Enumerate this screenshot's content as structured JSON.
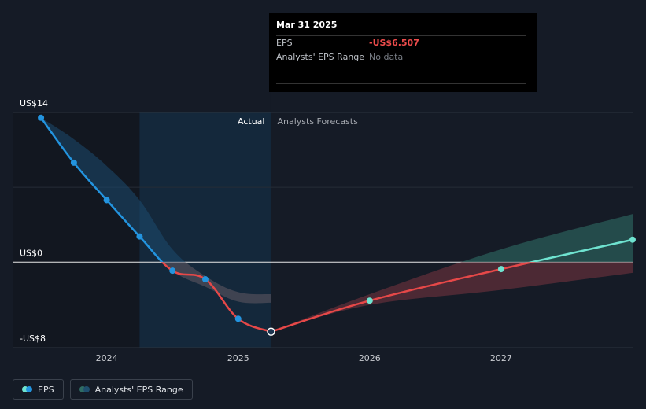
{
  "tooltip": {
    "date": "Mar 31 2025",
    "eps_label": "EPS",
    "eps_value": "-US$6.507",
    "range_label": "Analysts' EPS Range",
    "range_value": "No data"
  },
  "region_labels": {
    "actual": "Actual",
    "forecast": "Analysts Forecasts"
  },
  "legend": {
    "eps": "EPS",
    "range": "Analysts' EPS Range"
  },
  "colors": {
    "background": "#151b26",
    "actual_line": "#2394df",
    "negative_line": "#e64848",
    "positive_line": "#6fe3d0",
    "past_band": "#5c5560",
    "forecast_band_negative": "#7a3440",
    "forecast_band_positive": "#2f6c64",
    "highlight_region": "#142a40"
  },
  "chart_data": {
    "type": "line",
    "y_tick_labels": [
      "US$14",
      "US$0",
      "-US$8"
    ],
    "y_ticks": [
      14,
      0,
      -8
    ],
    "ylim": [
      -8,
      14
    ],
    "x_tick_labels": [
      "2024",
      "2025",
      "2026",
      "2027"
    ],
    "x_ticks": [
      2024,
      2025,
      2026,
      2027
    ],
    "xlim": [
      2023.29,
      2028.0
    ],
    "actual_boundary": 2025.25,
    "shaded_start": 2024.25,
    "series": [
      {
        "name": "EPS",
        "points": [
          {
            "x": 2023.5,
            "y": 13.5
          },
          {
            "x": 2023.75,
            "y": 9.3
          },
          {
            "x": 2024.0,
            "y": 5.8
          },
          {
            "x": 2024.25,
            "y": 2.4
          },
          {
            "x": 2024.5,
            "y": -0.8
          },
          {
            "x": 2024.75,
            "y": -1.6
          },
          {
            "x": 2025.0,
            "y": -5.3
          },
          {
            "x": 2025.25,
            "y": -6.507
          },
          {
            "x": 2026.0,
            "y": -3.6
          },
          {
            "x": 2027.0,
            "y": -0.65
          },
          {
            "x": 2028.0,
            "y": 2.1
          }
        ]
      }
    ],
    "range": {
      "past_upper": [
        {
          "x": 2023.5,
          "y": 13.5
        },
        {
          "x": 2023.75,
          "y": 11.5
        },
        {
          "x": 2024.0,
          "y": 9.0
        },
        {
          "x": 2024.25,
          "y": 5.8
        },
        {
          "x": 2024.5,
          "y": 1.2
        },
        {
          "x": 2024.75,
          "y": -1.3
        },
        {
          "x": 2025.0,
          "y": -2.8
        },
        {
          "x": 2025.25,
          "y": -3.0
        }
      ],
      "past_lower": [
        {
          "x": 2023.5,
          "y": 13.5
        },
        {
          "x": 2023.75,
          "y": 9.3
        },
        {
          "x": 2024.0,
          "y": 5.8
        },
        {
          "x": 2024.25,
          "y": 2.4
        },
        {
          "x": 2024.5,
          "y": -0.8
        },
        {
          "x": 2024.75,
          "y": -2.3
        },
        {
          "x": 2025.0,
          "y": -3.7
        },
        {
          "x": 2025.25,
          "y": -3.8
        }
      ],
      "forecast_upper": [
        {
          "x": 2025.25,
          "y": -6.507
        },
        {
          "x": 2026.0,
          "y": -3.0
        },
        {
          "x": 2027.0,
          "y": 1.2
        },
        {
          "x": 2028.0,
          "y": 4.5
        }
      ],
      "forecast_lower": [
        {
          "x": 2025.25,
          "y": -6.507
        },
        {
          "x": 2026.0,
          "y": -4.0
        },
        {
          "x": 2027.0,
          "y": -2.6
        },
        {
          "x": 2028.0,
          "y": -1.0
        }
      ]
    }
  }
}
